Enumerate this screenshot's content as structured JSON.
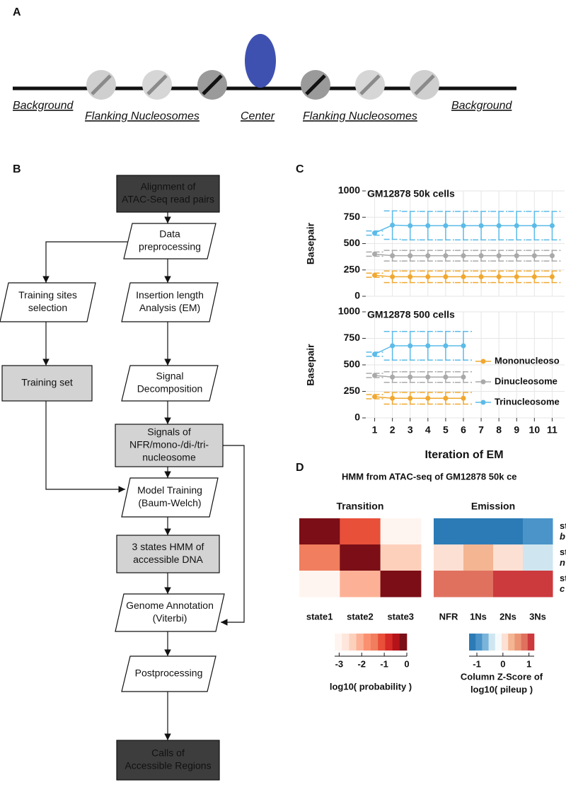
{
  "panel_labels": [
    "A",
    "B",
    "C",
    "D"
  ],
  "panel_a": {
    "labels": [
      "Background",
      "Flanking Nucleosomes",
      "Center",
      "Flanking Nucleosomes",
      "Background"
    ]
  },
  "panel_b": {
    "nodes": [
      {
        "lines": [
          "Alignment of",
          "ATAC-Seq read pairs"
        ]
      },
      {
        "lines": [
          "Data",
          "preprocessing"
        ]
      },
      {
        "lines": [
          "Training sites",
          "selection"
        ]
      },
      {
        "lines": [
          "Insertion length",
          "Analysis (EM)"
        ]
      },
      {
        "lines": [
          "Training set"
        ]
      },
      {
        "lines": [
          "Signal",
          "Decomposition"
        ]
      },
      {
        "lines": [
          "Signals of",
          "NFR/mono-/di-/tri-",
          "nucleosome"
        ]
      },
      {
        "lines": [
          "Model Training",
          "(Baum-Welch)"
        ]
      },
      {
        "lines": [
          "3 states HMM of",
          "accessible DNA"
        ]
      },
      {
        "lines": [
          "Genome Annotation",
          "(Viterbi)"
        ]
      },
      {
        "lines": [
          "Postprocessing"
        ]
      },
      {
        "lines": [
          "Calls of",
          "Accessible Regions"
        ]
      }
    ]
  },
  "panel_d": {
    "title": "HMM from ATAC-seq of GM12878 50k ce"
  },
  "chart_data": [
    {
      "type": "line",
      "title": "GM12878 50k cells",
      "y_label": "Basepair",
      "x": [
        1,
        2,
        3,
        4,
        5,
        6,
        7,
        8,
        9,
        10,
        11
      ],
      "xlim": [
        0.5,
        11.7
      ],
      "xticks": [
        1,
        2,
        3,
        4,
        5,
        6,
        7,
        8,
        9,
        10,
        11
      ],
      "show_xtick_labels": false,
      "ylim": [
        0,
        1000
      ],
      "yticks": [
        0,
        250,
        500,
        750,
        1000
      ],
      "grid": true,
      "series": [
        {
          "color": "#f0a830",
          "values": [
            200,
            185,
            185,
            185,
            185,
            185,
            185,
            185,
            185,
            185,
            185
          ],
          "errors": [
            20,
            55,
            55,
            55,
            55,
            55,
            55,
            55,
            55,
            55,
            55
          ]
        },
        {
          "color": "#a9a9a9",
          "values": [
            400,
            385,
            385,
            385,
            385,
            385,
            385,
            385,
            385,
            385,
            385
          ],
          "errors": [
            20,
            50,
            50,
            50,
            50,
            50,
            50,
            50,
            50,
            50,
            50
          ]
        },
        {
          "color": "#5bbbe8",
          "values": [
            600,
            675,
            670,
            670,
            670,
            670,
            670,
            670,
            670,
            670,
            670
          ],
          "errors": [
            20,
            135,
            135,
            135,
            135,
            135,
            135,
            135,
            135,
            135,
            135
          ]
        }
      ]
    },
    {
      "type": "line",
      "title": "GM12878 500 cells",
      "y_label": "Basepair",
      "x_label": "Iteration of EM",
      "x": [
        1,
        2,
        3,
        4,
        5,
        6
      ],
      "xlim": [
        0.5,
        11.7
      ],
      "xticks": [
        1,
        2,
        3,
        4,
        5,
        6,
        7,
        8,
        9,
        10,
        11
      ],
      "show_xtick_labels": true,
      "ylim": [
        0,
        1000
      ],
      "yticks": [
        0,
        250,
        500,
        750,
        1000
      ],
      "grid": true,
      "legend": "right",
      "series": [
        {
          "name": "Mononucleoso",
          "color": "#f0a830",
          "values": [
            200,
            185,
            185,
            185,
            185,
            185
          ],
          "errors": [
            20,
            55,
            55,
            55,
            55,
            55
          ]
        },
        {
          "name": "Dinucleosome",
          "color": "#a9a9a9",
          "values": [
            400,
            385,
            385,
            385,
            385,
            385
          ],
          "errors": [
            20,
            50,
            50,
            50,
            50,
            50
          ]
        },
        {
          "name": "Trinucleosome",
          "color": "#5bbbe8",
          "values": [
            600,
            680,
            680,
            680,
            680,
            680
          ],
          "errors": [
            20,
            135,
            135,
            135,
            135,
            135
          ]
        }
      ]
    },
    {
      "type": "heatmap",
      "title": "Transition",
      "x_labels": [
        "state1",
        "state2",
        "state3"
      ],
      "values": [
        [
          0,
          -1.0,
          -3.2
        ],
        [
          -1.5,
          0,
          -2.4
        ],
        [
          -3.2,
          -2.0,
          0
        ]
      ],
      "clim": [
        -3.2,
        0
      ],
      "colors": [
        "#fff5f0",
        "#fee6dc",
        "#fdd0bc",
        "#fcb196",
        "#fb9070",
        "#f07e5f",
        "#e8503a",
        "#d62a26",
        "#b31319",
        "#7b0e16"
      ],
      "colorbar_ticks": [
        -3,
        -2,
        -1,
        0
      ],
      "colorbar_label": [
        "log10( probability )"
      ]
    },
    {
      "type": "heatmap",
      "title": "Emission",
      "x_labels": [
        "NFR",
        "1Ns",
        "2Ns",
        "3Ns"
      ],
      "row_labels": [
        [
          "st",
          "b"
        ],
        [
          "st",
          "n"
        ],
        [
          "st",
          "c"
        ]
      ],
      "values": [
        [
          -1.25,
          -1.25,
          -1.25,
          -0.9
        ],
        [
          0.15,
          0.4,
          0,
          -0.4
        ],
        [
          0.85,
          0.85,
          1.15,
          1.15
        ]
      ],
      "clim": [
        -1.3,
        1.2
      ],
      "colors": [
        "#2c7bb6",
        "#4a94c9",
        "#7ab4da",
        "#cfe6f0",
        "#f7fafb",
        "#fde0d4",
        "#f4b592",
        "#eb9575",
        "#e0715f",
        "#cc3a3e"
      ],
      "colorbar_ticks": [
        -1,
        0,
        1
      ],
      "colorbar_label": [
        "Column Z-Score of",
        "log10( pileup )"
      ]
    }
  ]
}
